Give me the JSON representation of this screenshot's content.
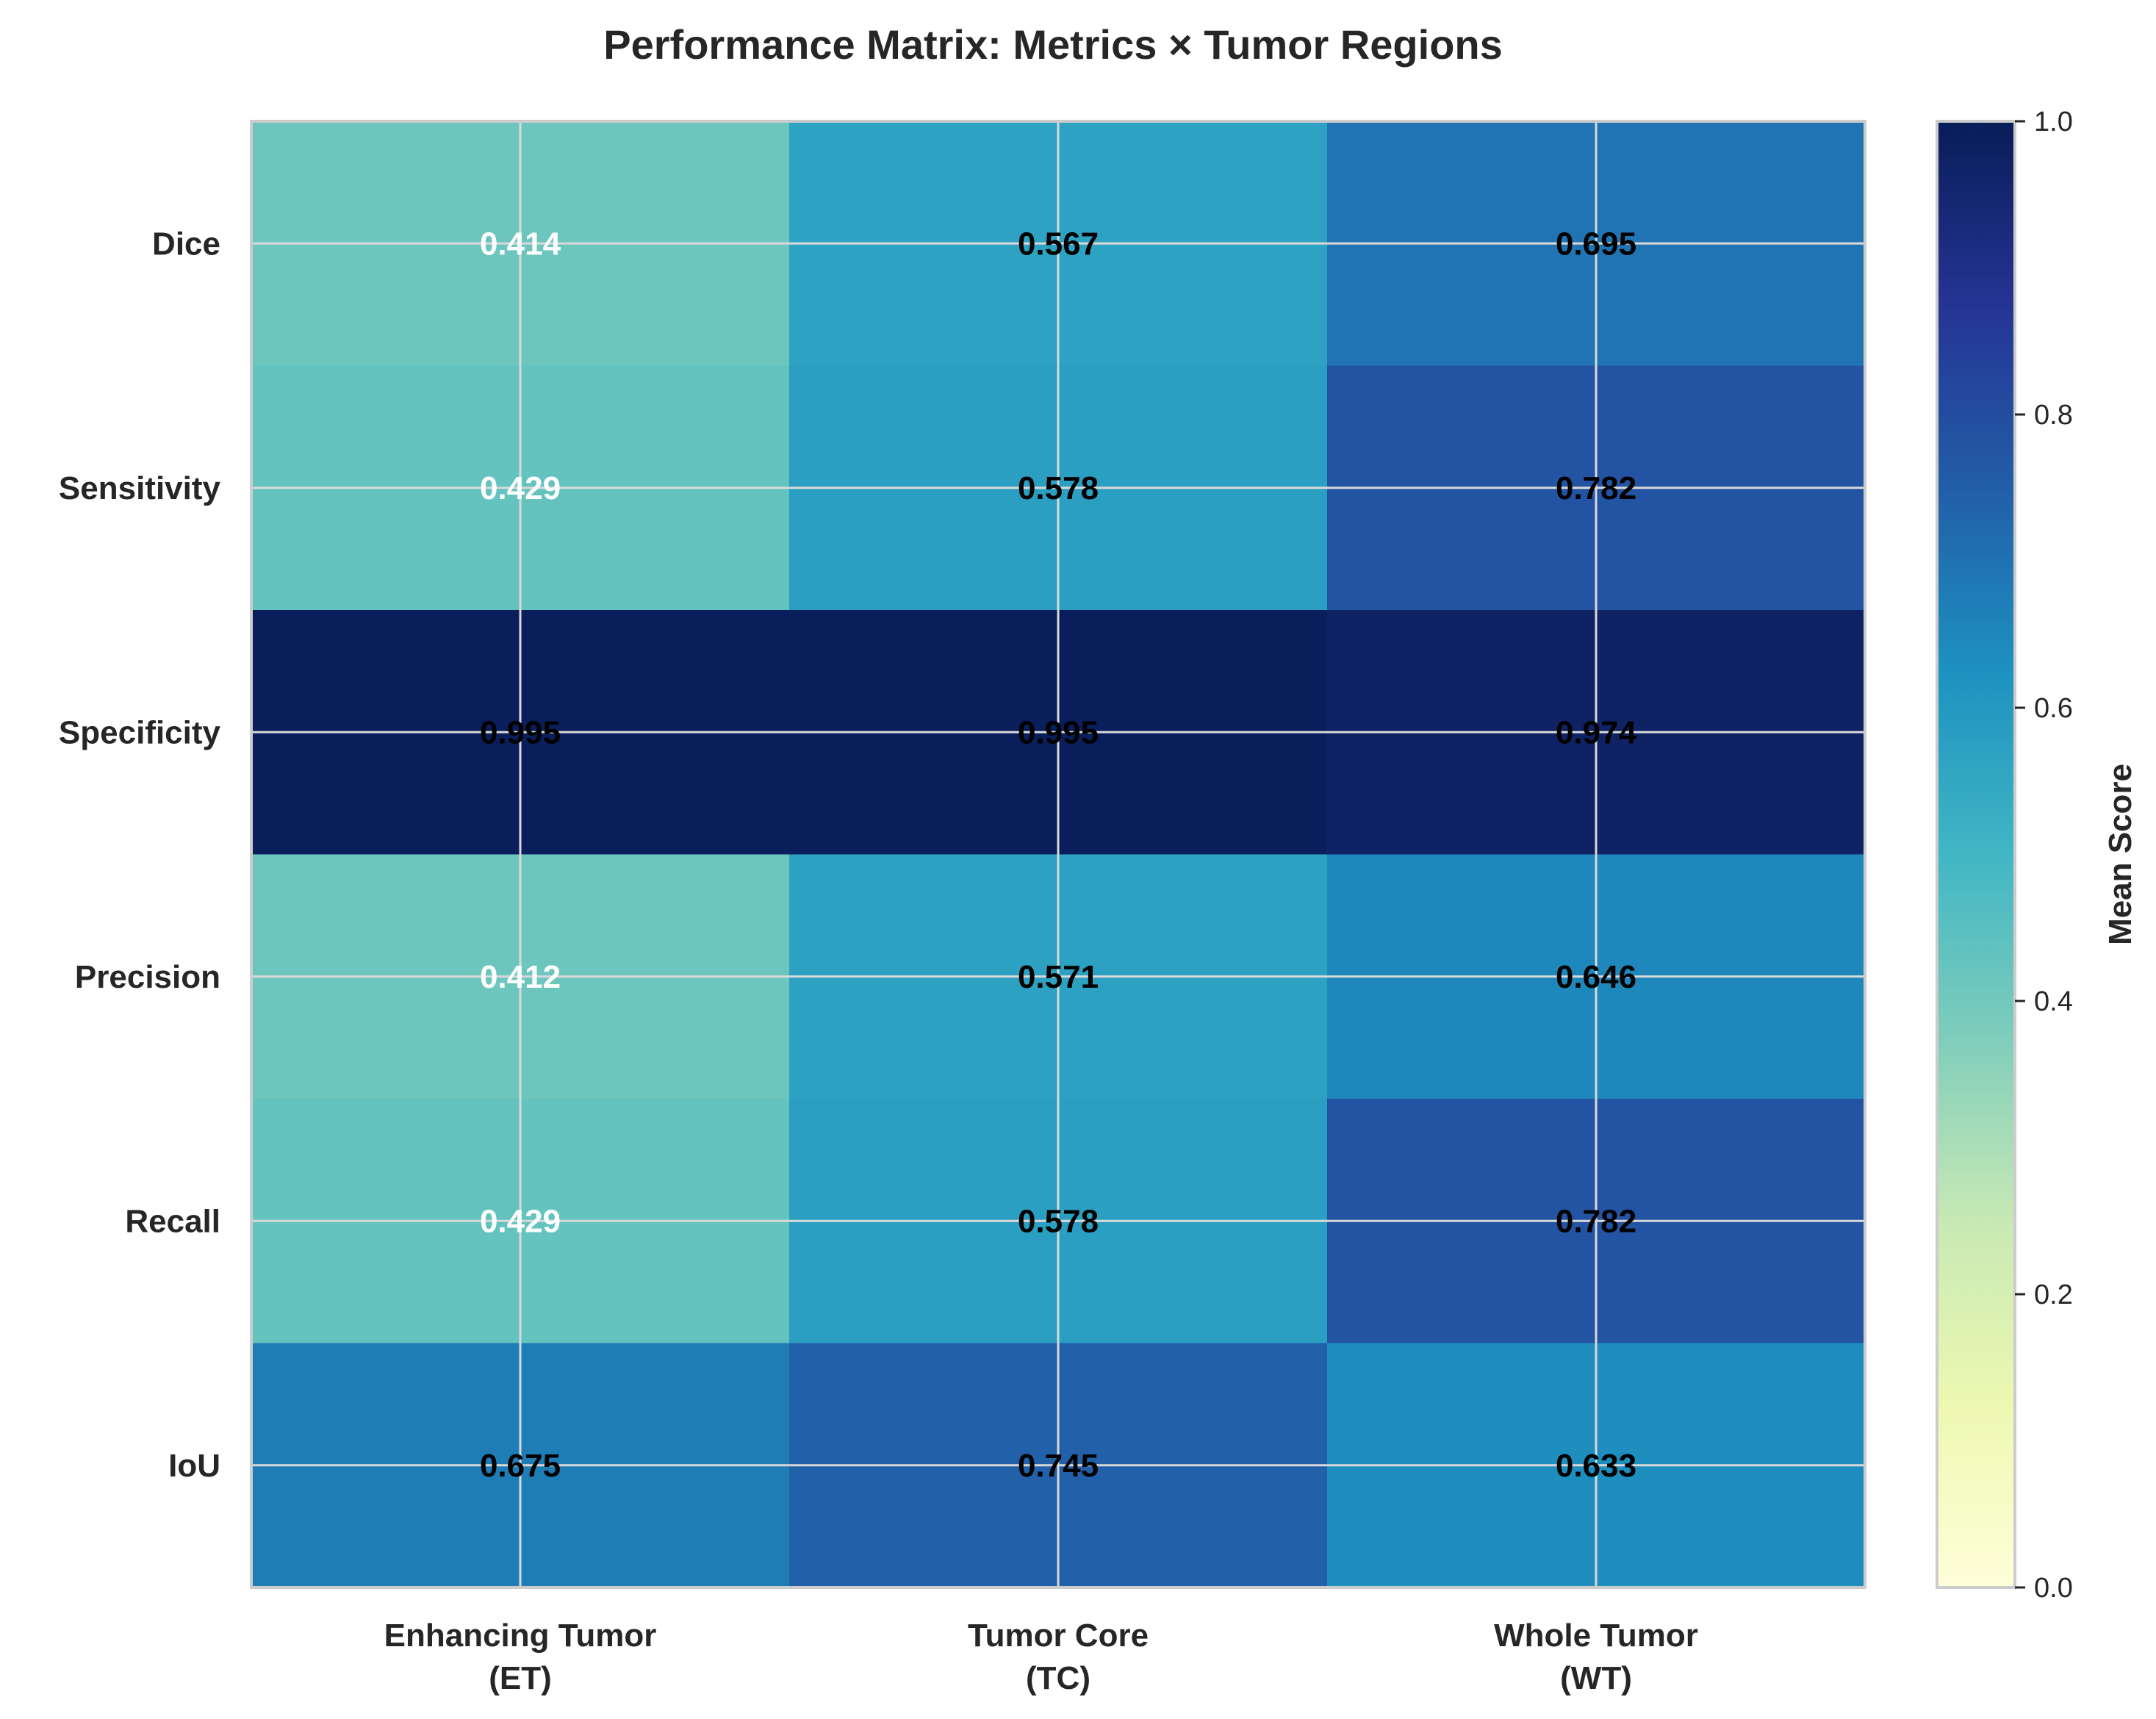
{
  "chart_data": {
    "type": "heatmap",
    "title": "Performance Matrix: Metrics × Tumor Regions",
    "rows": [
      "Dice",
      "Sensitivity",
      "Specificity",
      "Precision",
      "Recall",
      "IoU"
    ],
    "columns": [
      [
        "Enhancing Tumor",
        "(ET)"
      ],
      [
        "Tumor Core",
        "(TC)"
      ],
      [
        "Whole Tumor",
        "(WT)"
      ]
    ],
    "values": [
      [
        0.414,
        0.567,
        0.695
      ],
      [
        0.429,
        0.578,
        0.782
      ],
      [
        0.995,
        0.995,
        0.974
      ],
      [
        0.412,
        0.571,
        0.646
      ],
      [
        0.429,
        0.578,
        0.782
      ],
      [
        0.675,
        0.745,
        0.633
      ]
    ],
    "colormap": "YlGnBu",
    "vmin": 0.0,
    "vmax": 1.0,
    "colorbar_label": "Mean Score",
    "colorbar_ticks": [
      "0.0",
      "0.2",
      "0.4",
      "0.6",
      "0.8",
      "1.0"
    ],
    "grid": true
  }
}
